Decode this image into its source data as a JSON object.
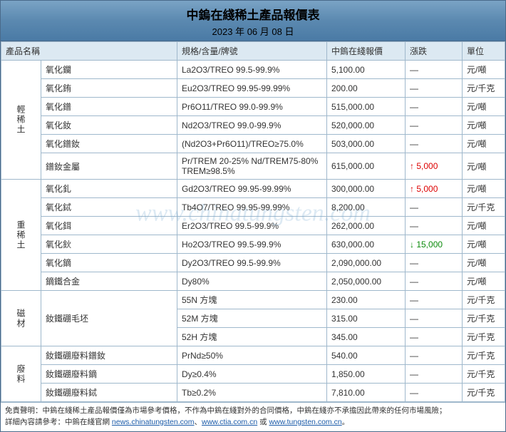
{
  "header": {
    "title": "中鎢在綫稀土產品報價表",
    "date": "2023 年 06 月 08 日"
  },
  "columns": {
    "name": "產品名稱",
    "spec": "規格/含量/牌號",
    "price": "中鎢在綫報價",
    "change": "漲跌",
    "unit": "單位"
  },
  "categories": [
    {
      "label": "輕稀土",
      "rows": [
        {
          "name": "氧化鑭",
          "spec": "La2O3/TREO 99.5-99.9%",
          "price": "5,100.00",
          "change": "—",
          "unit": "元/噸"
        },
        {
          "name": "氧化銪",
          "spec": "Eu2O3/TREO 99.95-99.99%",
          "price": "200.00",
          "change": "—",
          "unit": "元/千克"
        },
        {
          "name": "氧化鐠",
          "spec": "Pr6O11/TREO 99.0-99.9%",
          "price": "515,000.00",
          "change": "—",
          "unit": "元/噸"
        },
        {
          "name": "氧化釹",
          "spec": "Nd2O3/TREO 99.0-99.9%",
          "price": "520,000.00",
          "change": "—",
          "unit": "元/噸"
        },
        {
          "name": "氧化鐠釹",
          "spec": "(Nd2O3+Pr6O11)/TREO≥75.0%",
          "price": "503,000.00",
          "change": "—",
          "unit": "元/噸"
        },
        {
          "name": "鐠釹金屬",
          "spec": "Pr/TREM 20-25% Nd/TREM75-80% TREM≥98.5%",
          "price": "615,000.00",
          "change": "↑ 5,000",
          "dir": "up",
          "unit": "元/噸"
        }
      ]
    },
    {
      "label": "重稀土",
      "rows": [
        {
          "name": "氧化釓",
          "spec": "Gd2O3/TREO 99.95-99.99%",
          "price": "300,000.00",
          "change": "↑ 5,000",
          "dir": "up",
          "unit": "元/噸"
        },
        {
          "name": "氧化鋱",
          "spec": "Tb4O7/TREO 99.95-99.99%",
          "price": "8,200.00",
          "change": "—",
          "unit": "元/千克"
        },
        {
          "name": "氧化鉺",
          "spec": "Er2O3/TREO 99.5-99.9%",
          "price": "262,000.00",
          "change": "—",
          "unit": "元/噸"
        },
        {
          "name": "氧化鈥",
          "spec": "Ho2O3/TREO 99.5-99.9%",
          "price": "630,000.00",
          "change": "↓ 15,000",
          "dir": "down",
          "unit": "元/噸"
        },
        {
          "name": "氧化鏑",
          "spec": "Dy2O3/TREO 99.5-99.9%",
          "price": "2,090,000.00",
          "change": "—",
          "unit": "元/噸"
        },
        {
          "name": "鏑鐵合金",
          "spec": "Dy80%",
          "price": "2,050,000.00",
          "change": "—",
          "unit": "元/噸"
        }
      ]
    },
    {
      "label": "磁材",
      "rows": [
        {
          "name": "釹鐵硼毛坯",
          "spec": "55N 方塊",
          "price": "230.00",
          "change": "—",
          "unit": "元/千克",
          "rowspan_name": 3
        },
        {
          "spec": "52M 方塊",
          "price": "315.00",
          "change": "—",
          "unit": "元/千克"
        },
        {
          "spec": "52H 方塊",
          "price": "345.00",
          "change": "—",
          "unit": "元/千克"
        }
      ]
    },
    {
      "label": "廢料",
      "rows": [
        {
          "name": "釹鐵硼廢料鐠釹",
          "spec": "PrNd≥50%",
          "price": "540.00",
          "change": "—",
          "unit": "元/千克"
        },
        {
          "name": "釹鐵硼廢料鏑",
          "spec": "Dy≥0.4%",
          "price": "1,850.00",
          "change": "—",
          "unit": "元/千克"
        },
        {
          "name": "釹鐵硼廢料鋱",
          "spec": "Tb≥0.2%",
          "price": "7,810.00",
          "change": "—",
          "unit": "元/千克"
        }
      ]
    }
  ],
  "watermark": "www.chinatungsten.com",
  "footer": {
    "line1_prefix": "免責聲明：中鎢在綫稀土產品報價僅為市場參考價格，不作為中鎢在綫對外的合同價格，中鎢在綫亦不承擔因此帶來的任何市場風險；",
    "line2_prefix": "詳細內容請參考：中鎢在綫官網 ",
    "link1": "news.chinatungsten.com",
    "sep1": "、",
    "link2": "www.ctia.com.cn",
    "sep2": " 或 ",
    "link3": "www.tungsten.com.cn",
    "tail": "。"
  }
}
